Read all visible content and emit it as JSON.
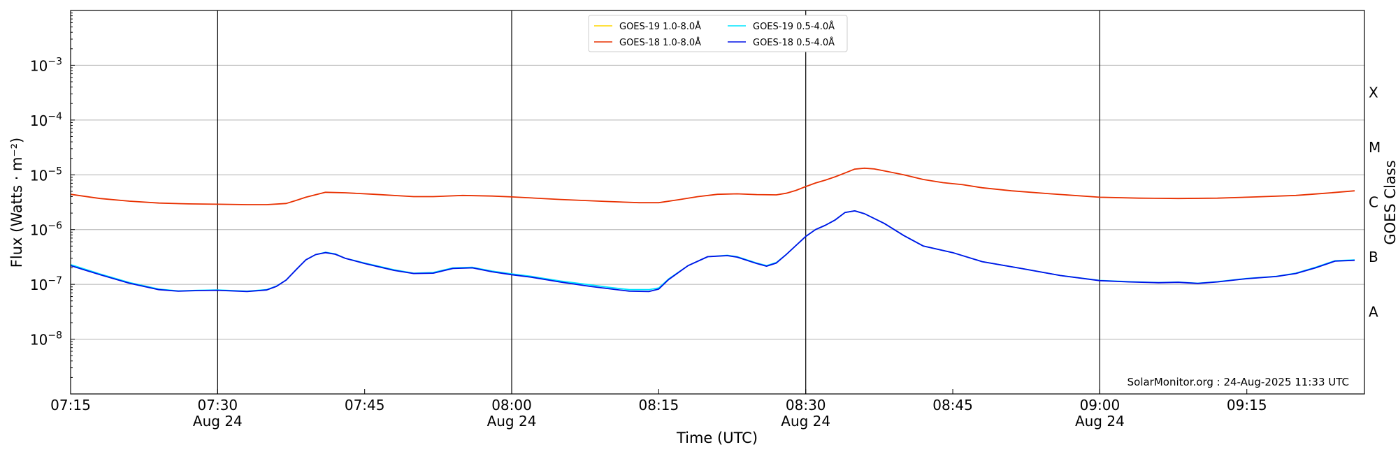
{
  "chart_data": {
    "type": "line",
    "xlabel": "Time (UTC)",
    "ylabel": "Flux (Watts · m⁻²)",
    "y2label": "GOES Class",
    "y_scale": "log",
    "ylim": [
      1e-09,
      0.01
    ],
    "xlim": [
      "07:15",
      "09:27"
    ],
    "x_ticks": [
      {
        "time": "07:15",
        "label": "07:15",
        "date": ""
      },
      {
        "time": "07:30",
        "label": "07:30",
        "date": "Aug 24"
      },
      {
        "time": "07:45",
        "label": "07:45",
        "date": ""
      },
      {
        "time": "08:00",
        "label": "08:00",
        "date": "Aug 24"
      },
      {
        "time": "08:15",
        "label": "08:15",
        "date": ""
      },
      {
        "time": "08:30",
        "label": "08:30",
        "date": "Aug 24"
      },
      {
        "time": "08:45",
        "label": "08:45",
        "date": ""
      },
      {
        "time": "09:00",
        "label": "09:00",
        "date": "Aug 24"
      },
      {
        "time": "09:15",
        "label": "09:15",
        "date": ""
      }
    ],
    "vertical_lines": [
      "07:30",
      "08:00",
      "08:30",
      "09:00"
    ],
    "y_ticks": [
      {
        "value": 1e-08,
        "base": "10",
        "exp": "−8"
      },
      {
        "value": 1e-07,
        "base": "10",
        "exp": "−7"
      },
      {
        "value": 1e-06,
        "base": "10",
        "exp": "−6"
      },
      {
        "value": 1e-05,
        "base": "10",
        "exp": "−5"
      },
      {
        "value": 0.0001,
        "base": "10",
        "exp": "−4"
      },
      {
        "value": 0.001,
        "base": "10",
        "exp": "−3"
      }
    ],
    "goes_classes": [
      {
        "label": "A",
        "value": 3.16e-08
      },
      {
        "label": "B",
        "value": 3.16e-07
      },
      {
        "label": "C",
        "value": 3.16e-06
      },
      {
        "label": "M",
        "value": 3.16e-05
      },
      {
        "label": "X",
        "value": 0.000316
      }
    ],
    "grid": "horizontal",
    "legend_position": "top-center",
    "annotation": "SolarMonitor.org : 24-Aug-2025 11:33 UTC",
    "series": [
      {
        "name": "GOES-19 1.0-8.0Å",
        "color": "#ffd700",
        "points": []
      },
      {
        "name": "GOES-19 0.5-4.0Å",
        "color": "#00e5ff",
        "points": [
          [
            "07:15",
            2.3e-07
          ],
          [
            "07:18",
            1.55e-07
          ],
          [
            "07:21",
            1.08e-07
          ],
          [
            "07:24",
            8.2e-08
          ],
          [
            "07:26",
            7.6e-08
          ],
          [
            "07:28",
            7.8e-08
          ],
          [
            "07:30",
            7.9e-08
          ],
          [
            "07:33",
            7.5e-08
          ],
          [
            "07:35",
            8e-08
          ],
          [
            "07:36",
            9.3e-08
          ],
          [
            "07:37",
            1.2e-07
          ],
          [
            "07:38",
            1.85e-07
          ],
          [
            "07:39",
            2.8e-07
          ],
          [
            "07:40",
            3.5e-07
          ],
          [
            "07:41",
            3.85e-07
          ],
          [
            "07:42",
            3.6e-07
          ],
          [
            "07:43",
            3e-07
          ],
          [
            "07:45",
            2.45e-07
          ],
          [
            "07:48",
            1.85e-07
          ],
          [
            "07:50",
            1.6e-07
          ],
          [
            "07:52",
            1.65e-07
          ],
          [
            "07:54",
            2e-07
          ],
          [
            "07:56",
            2.05e-07
          ],
          [
            "07:58",
            1.75e-07
          ],
          [
            "08:00",
            1.55e-07
          ],
          [
            "08:02",
            1.4e-07
          ],
          [
            "08:05",
            1.15e-07
          ],
          [
            "08:08",
            9.8e-08
          ],
          [
            "08:10",
            8.8e-08
          ],
          [
            "08:12",
            8e-08
          ],
          [
            "08:14",
            8e-08
          ],
          [
            "08:15",
            8.6e-08
          ],
          [
            "08:16",
            1.25e-07
          ],
          [
            "08:18",
            2.2e-07
          ],
          [
            "08:20",
            3.2e-07
          ],
          [
            "08:22",
            3.4e-07
          ],
          [
            "08:23",
            3.2e-07
          ],
          [
            "08:25",
            2.45e-07
          ],
          [
            "08:26",
            2.2e-07
          ],
          [
            "08:27",
            2.5e-07
          ],
          [
            "08:28",
            3.5e-07
          ],
          [
            "08:30",
            7.5e-07
          ],
          [
            "08:31",
            1e-06
          ],
          [
            "08:32",
            1.2e-06
          ],
          [
            "08:33",
            1.5e-06
          ],
          [
            "08:34",
            2.05e-06
          ],
          [
            "08:35",
            2.2e-06
          ],
          [
            "08:36",
            1.95e-06
          ],
          [
            "08:38",
            1.3e-06
          ],
          [
            "08:40",
            7.8e-07
          ],
          [
            "08:42",
            5e-07
          ],
          [
            "08:45",
            3.8e-07
          ],
          [
            "08:48",
            2.6e-07
          ],
          [
            "08:52",
            1.95e-07
          ],
          [
            "08:56",
            1.45e-07
          ],
          [
            "09:00",
            1.18e-07
          ],
          [
            "09:03",
            1.12e-07
          ],
          [
            "09:06",
            1.08e-07
          ],
          [
            "09:08",
            1.1e-07
          ],
          [
            "09:10",
            1.05e-07
          ],
          [
            "09:12",
            1.12e-07
          ],
          [
            "09:15",
            1.28e-07
          ],
          [
            "09:18",
            1.4e-07
          ],
          [
            "09:20",
            1.6e-07
          ],
          [
            "09:22",
            2.05e-07
          ],
          [
            "09:24",
            2.7e-07
          ],
          [
            "09:26",
            2.8e-07
          ]
        ]
      },
      {
        "name": "GOES-18 1.0-8.0Å",
        "color": "#e83000",
        "points": [
          [
            "07:15",
            4.4e-06
          ],
          [
            "07:18",
            3.7e-06
          ],
          [
            "07:21",
            3.3e-06
          ],
          [
            "07:24",
            3.05e-06
          ],
          [
            "07:27",
            2.95e-06
          ],
          [
            "07:30",
            2.9e-06
          ],
          [
            "07:33",
            2.85e-06
          ],
          [
            "07:35",
            2.85e-06
          ],
          [
            "07:37",
            3e-06
          ],
          [
            "07:38",
            3.4e-06
          ],
          [
            "07:39",
            3.9e-06
          ],
          [
            "07:41",
            4.8e-06
          ],
          [
            "07:43",
            4.7e-06
          ],
          [
            "07:46",
            4.4e-06
          ],
          [
            "07:50",
            4e-06
          ],
          [
            "07:52",
            4e-06
          ],
          [
            "07:55",
            4.2e-06
          ],
          [
            "07:58",
            4.1e-06
          ],
          [
            "08:00",
            3.95e-06
          ],
          [
            "08:05",
            3.55e-06
          ],
          [
            "08:10",
            3.25e-06
          ],
          [
            "08:13",
            3.1e-06
          ],
          [
            "08:15",
            3.1e-06
          ],
          [
            "08:17",
            3.5e-06
          ],
          [
            "08:19",
            4e-06
          ],
          [
            "08:21",
            4.4e-06
          ],
          [
            "08:23",
            4.5e-06
          ],
          [
            "08:25",
            4.35e-06
          ],
          [
            "08:27",
            4.3e-06
          ],
          [
            "08:28",
            4.6e-06
          ],
          [
            "08:29",
            5.2e-06
          ],
          [
            "08:30",
            6.1e-06
          ],
          [
            "08:31",
            7.1e-06
          ],
          [
            "08:32",
            8e-06
          ],
          [
            "08:33",
            9.2e-06
          ],
          [
            "08:34",
            1.08e-05
          ],
          [
            "08:35",
            1.27e-05
          ],
          [
            "08:36",
            1.32e-05
          ],
          [
            "08:37",
            1.28e-05
          ],
          [
            "08:38",
            1.18e-05
          ],
          [
            "08:40",
            1e-05
          ],
          [
            "08:42",
            8.2e-06
          ],
          [
            "08:44",
            7.2e-06
          ],
          [
            "08:46",
            6.6e-06
          ],
          [
            "08:48",
            5.8e-06
          ],
          [
            "08:51",
            5.1e-06
          ],
          [
            "08:55",
            4.5e-06
          ],
          [
            "09:00",
            3.9e-06
          ],
          [
            "09:04",
            3.75e-06
          ],
          [
            "09:08",
            3.7e-06
          ],
          [
            "09:12",
            3.75e-06
          ],
          [
            "09:16",
            3.95e-06
          ],
          [
            "09:20",
            4.2e-06
          ],
          [
            "09:23",
            4.6e-06
          ],
          [
            "09:26",
            5.1e-06
          ]
        ]
      },
      {
        "name": "GOES-18 0.5-4.0Å",
        "color": "#0010e6",
        "points": [
          [
            "07:15",
            2.2e-07
          ],
          [
            "07:18",
            1.5e-07
          ],
          [
            "07:21",
            1.05e-07
          ],
          [
            "07:24",
            8e-08
          ],
          [
            "07:26",
            7.5e-08
          ],
          [
            "07:28",
            7.7e-08
          ],
          [
            "07:30",
            7.8e-08
          ],
          [
            "07:33",
            7.4e-08
          ],
          [
            "07:35",
            7.9e-08
          ],
          [
            "07:36",
            9.2e-08
          ],
          [
            "07:37",
            1.2e-07
          ],
          [
            "07:38",
            1.85e-07
          ],
          [
            "07:39",
            2.8e-07
          ],
          [
            "07:40",
            3.5e-07
          ],
          [
            "07:41",
            3.8e-07
          ],
          [
            "07:42",
            3.55e-07
          ],
          [
            "07:43",
            3e-07
          ],
          [
            "07:45",
            2.4e-07
          ],
          [
            "07:48",
            1.8e-07
          ],
          [
            "07:50",
            1.58e-07
          ],
          [
            "07:52",
            1.6e-07
          ],
          [
            "07:54",
            1.95e-07
          ],
          [
            "07:56",
            2e-07
          ],
          [
            "07:58",
            1.7e-07
          ],
          [
            "08:00",
            1.5e-07
          ],
          [
            "08:02",
            1.35e-07
          ],
          [
            "08:05",
            1.1e-07
          ],
          [
            "08:08",
            9.2e-08
          ],
          [
            "08:10",
            8.3e-08
          ],
          [
            "08:12",
            7.5e-08
          ],
          [
            "08:14",
            7.4e-08
          ],
          [
            "08:15",
            8.2e-08
          ],
          [
            "08:16",
            1.22e-07
          ],
          [
            "08:18",
            2.2e-07
          ],
          [
            "08:20",
            3.2e-07
          ],
          [
            "08:22",
            3.35e-07
          ],
          [
            "08:23",
            3.15e-07
          ],
          [
            "08:25",
            2.4e-07
          ],
          [
            "08:26",
            2.15e-07
          ],
          [
            "08:27",
            2.45e-07
          ],
          [
            "08:28",
            3.5e-07
          ],
          [
            "08:30",
            7.5e-07
          ],
          [
            "08:31",
            1e-06
          ],
          [
            "08:32",
            1.2e-06
          ],
          [
            "08:33",
            1.5e-06
          ],
          [
            "08:34",
            2.05e-06
          ],
          [
            "08:35",
            2.2e-06
          ],
          [
            "08:36",
            1.95e-06
          ],
          [
            "08:38",
            1.3e-06
          ],
          [
            "08:40",
            7.8e-07
          ],
          [
            "08:42",
            5e-07
          ],
          [
            "08:45",
            3.8e-07
          ],
          [
            "08:48",
            2.6e-07
          ],
          [
            "08:52",
            1.95e-07
          ],
          [
            "08:56",
            1.45e-07
          ],
          [
            "09:00",
            1.17e-07
          ],
          [
            "09:03",
            1.11e-07
          ],
          [
            "09:06",
            1.07e-07
          ],
          [
            "09:08",
            1.09e-07
          ],
          [
            "09:10",
            1.04e-07
          ],
          [
            "09:12",
            1.11e-07
          ],
          [
            "09:15",
            1.27e-07
          ],
          [
            "09:18",
            1.39e-07
          ],
          [
            "09:20",
            1.58e-07
          ],
          [
            "09:22",
            2e-07
          ],
          [
            "09:24",
            2.65e-07
          ],
          [
            "09:26",
            2.75e-07
          ]
        ]
      }
    ]
  }
}
